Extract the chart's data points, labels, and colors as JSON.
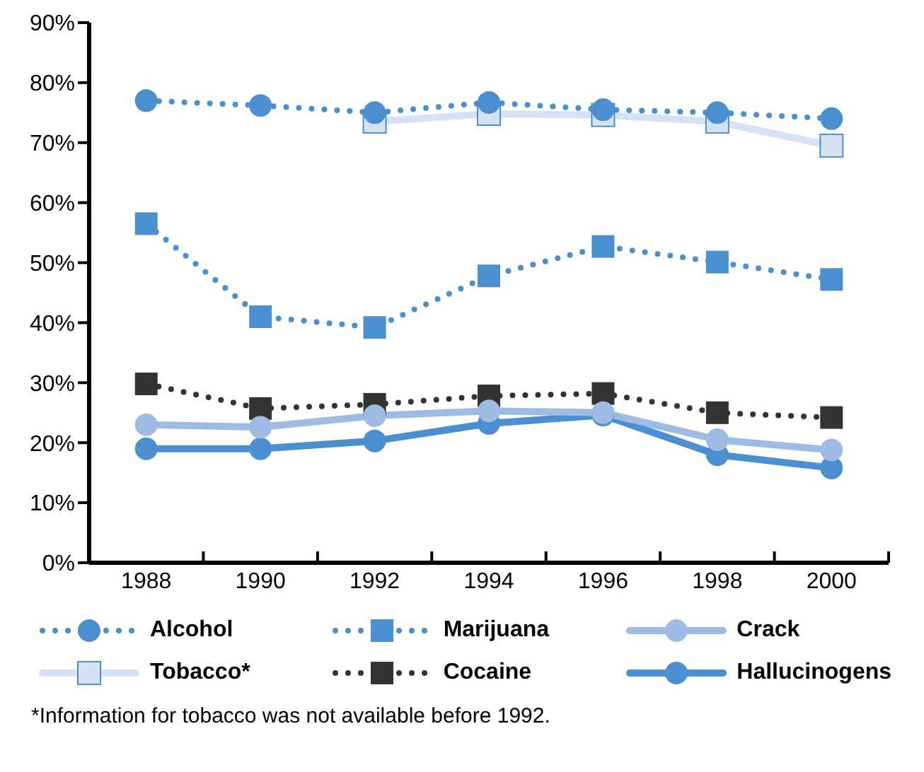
{
  "chart_data": {
    "type": "line",
    "x": [
      1988,
      1990,
      1992,
      1994,
      1996,
      1998,
      2000
    ],
    "xlim": [
      1987,
      2001
    ],
    "xticks": [
      {
        "value": 1987,
        "label": null
      },
      1988,
      {
        "value": 1989,
        "label": null
      },
      1990,
      {
        "value": 1991,
        "label": null
      },
      1992,
      {
        "value": 1993,
        "label": null
      },
      1994,
      {
        "value": 1995,
        "label": null
      },
      1996,
      {
        "value": 1997,
        "label": null
      },
      1998,
      {
        "value": 1999,
        "label": null
      },
      2000,
      {
        "value": 2001,
        "label": null
      }
    ],
    "ylim": [
      0,
      90
    ],
    "yticks": [
      {
        "value": 0,
        "label": "0%"
      },
      {
        "value": 10,
        "label": "10%"
      },
      {
        "value": 20,
        "label": "20%"
      },
      {
        "value": 30,
        "label": "30%"
      },
      {
        "value": 40,
        "label": "40%"
      },
      {
        "value": 50,
        "label": "50%"
      },
      {
        "value": 60,
        "label": "60%"
      },
      {
        "value": 70,
        "label": "70%"
      },
      {
        "value": 80,
        "label": "80%"
      },
      {
        "value": 90,
        "label": "90%"
      }
    ],
    "grid": false,
    "legend": "bottom",
    "series": [
      {
        "name": "Alcohol",
        "color": "#4a8fd0",
        "marker": "circle",
        "line_style": "dotted",
        "values": [
          77,
          76.2,
          75,
          76.7,
          75.5,
          75,
          74
        ]
      },
      {
        "name": "Marijuana",
        "color": "#4a8fd0",
        "marker": "square",
        "line_style": "dotted",
        "values": [
          56.5,
          41,
          39.2,
          47.8,
          52.7,
          50.1,
          47.2
        ]
      },
      {
        "name": "Crack",
        "color": "#9dbbe3",
        "marker": "circle",
        "line_style": "solid",
        "values": [
          23,
          22.6,
          24.5,
          25.3,
          25,
          20.5,
          18.8
        ]
      },
      {
        "name": "Tobacco*",
        "color": "#d6e2f3",
        "marker": "square",
        "line_style": "solid",
        "values": [
          null,
          null,
          73.5,
          74.8,
          74.6,
          73.5,
          69.5
        ]
      },
      {
        "name": "Cocaine",
        "color": "#333333",
        "marker": "square",
        "line_style": "dotted",
        "values": [
          29.8,
          25.7,
          26.4,
          27.8,
          28.2,
          25,
          24.2
        ]
      },
      {
        "name": "Hallucinogens",
        "color": "#4a8fd0",
        "marker": "circle",
        "line_style": "solid",
        "values": [
          19,
          19,
          20.3,
          23.2,
          24.6,
          18,
          15.8
        ]
      }
    ],
    "annotations": [
      "*Information for tobacco was not available before 1992."
    ]
  }
}
